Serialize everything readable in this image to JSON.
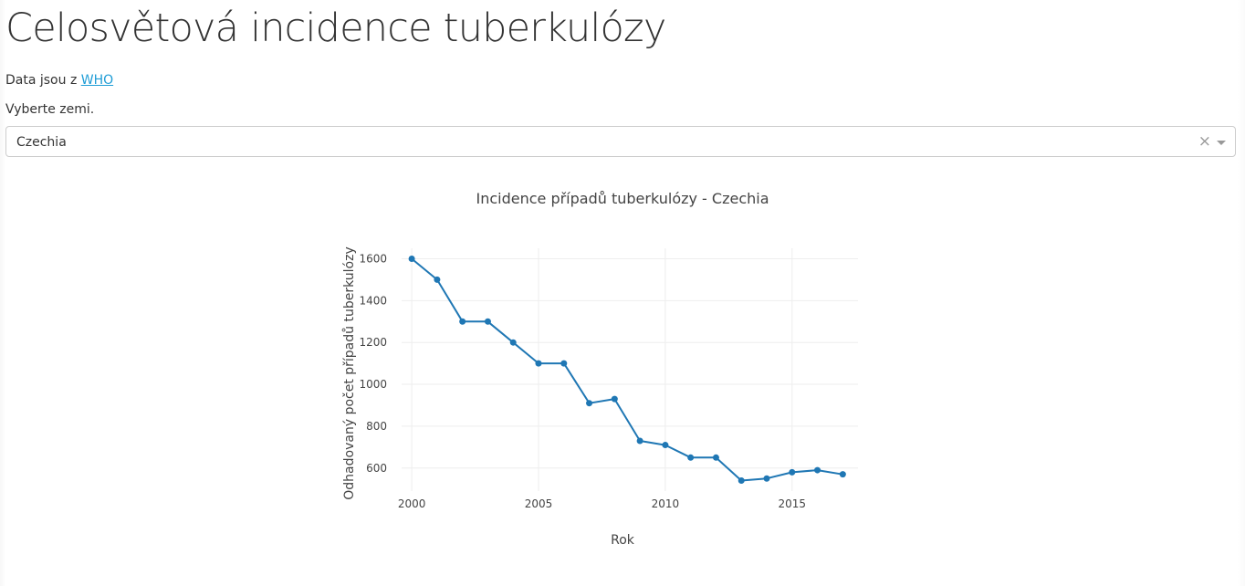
{
  "page": {
    "title": "Celosvětová incidence tuberkulózy",
    "source_prefix": "Data jsou z ",
    "source_link": "WHO",
    "select_label": "Vyberte zemi."
  },
  "country_select": {
    "value": "Czechia",
    "clear_glyph": "×"
  },
  "colors": {
    "series": "#1f77b4",
    "grid": "#eeeeee",
    "link": "#1f9dd6"
  },
  "chart_data": {
    "type": "line",
    "title": "Incidence případů tuberkulózy - Czechia",
    "xlabel": "Rok",
    "ylabel": "Odhadovaný počet případů tuberkulózy",
    "x_ticks": [
      2000,
      2005,
      2010,
      2015
    ],
    "y_ticks": [
      600,
      800,
      1000,
      1200,
      1400,
      1600
    ],
    "xlim": [
      1999.6,
      2017.6
    ],
    "ylim": [
      490,
      1650
    ],
    "grid": true,
    "markers": true,
    "x": [
      2000,
      2001,
      2002,
      2003,
      2004,
      2005,
      2006,
      2007,
      2008,
      2009,
      2010,
      2011,
      2012,
      2013,
      2014,
      2015,
      2016,
      2017
    ],
    "y": [
      1600,
      1500,
      1300,
      1300,
      1200,
      1100,
      1100,
      910,
      930,
      730,
      710,
      650,
      650,
      540,
      550,
      580,
      590,
      570
    ]
  }
}
